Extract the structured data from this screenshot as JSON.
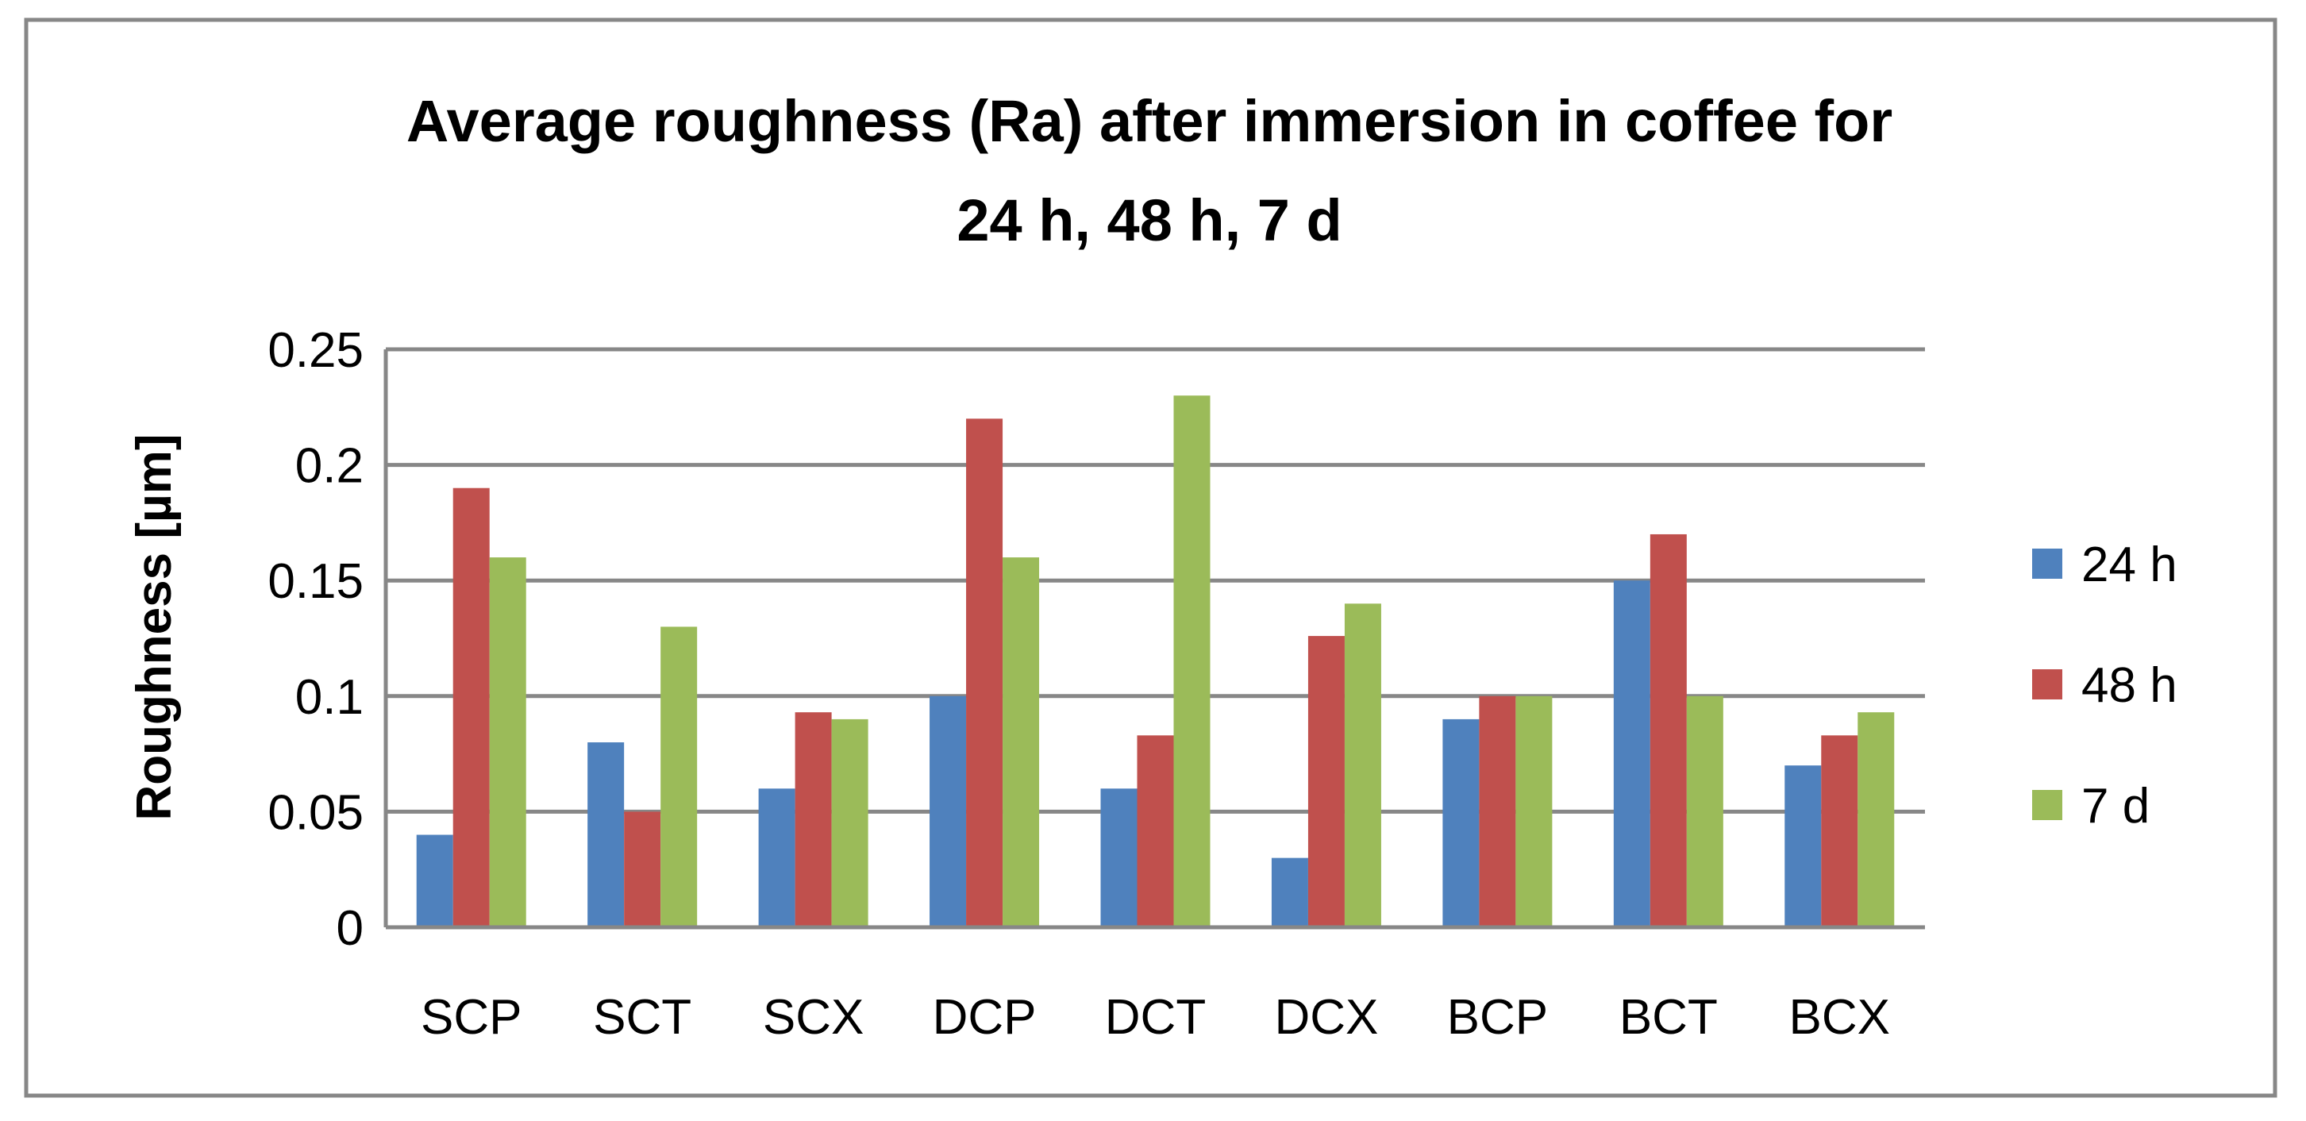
{
  "chart_data": {
    "type": "bar",
    "title_lines": [
      "Average roughness (Ra) after immersion in coffee for",
      "24 h, 48 h, 7 d"
    ],
    "ylabel": "Roughness [µm]",
    "xlabel": "",
    "categories": [
      "SCP",
      "SCT",
      "SCX",
      "DCP",
      "DCT",
      "DCX",
      "BCP",
      "BCT",
      "BCX"
    ],
    "series": [
      {
        "name": "24 h",
        "color": "#4F81BD",
        "values": [
          0.04,
          0.08,
          0.06,
          0.1,
          0.06,
          0.03,
          0.09,
          0.15,
          0.07
        ]
      },
      {
        "name": "48 h",
        "color": "#C0504D",
        "values": [
          0.19,
          0.05,
          0.093,
          0.22,
          0.083,
          0.126,
          0.1,
          0.17,
          0.083
        ]
      },
      {
        "name": "7 d",
        "color": "#9BBB59",
        "values": [
          0.16,
          0.13,
          0.09,
          0.16,
          0.23,
          0.14,
          0.1,
          0.1,
          0.093
        ]
      }
    ],
    "ylim": [
      0,
      0.25
    ],
    "yticks": [
      0,
      0.05,
      0.1,
      0.15,
      0.2,
      0.25
    ],
    "ytick_labels": [
      "0",
      "0.05",
      "0.1",
      "0.15",
      "0.2",
      "0.25"
    ],
    "grid": true,
    "legend_position": "right",
    "colors": {
      "gridline": "#878787",
      "frame": "#878787",
      "text": "#000000"
    }
  }
}
